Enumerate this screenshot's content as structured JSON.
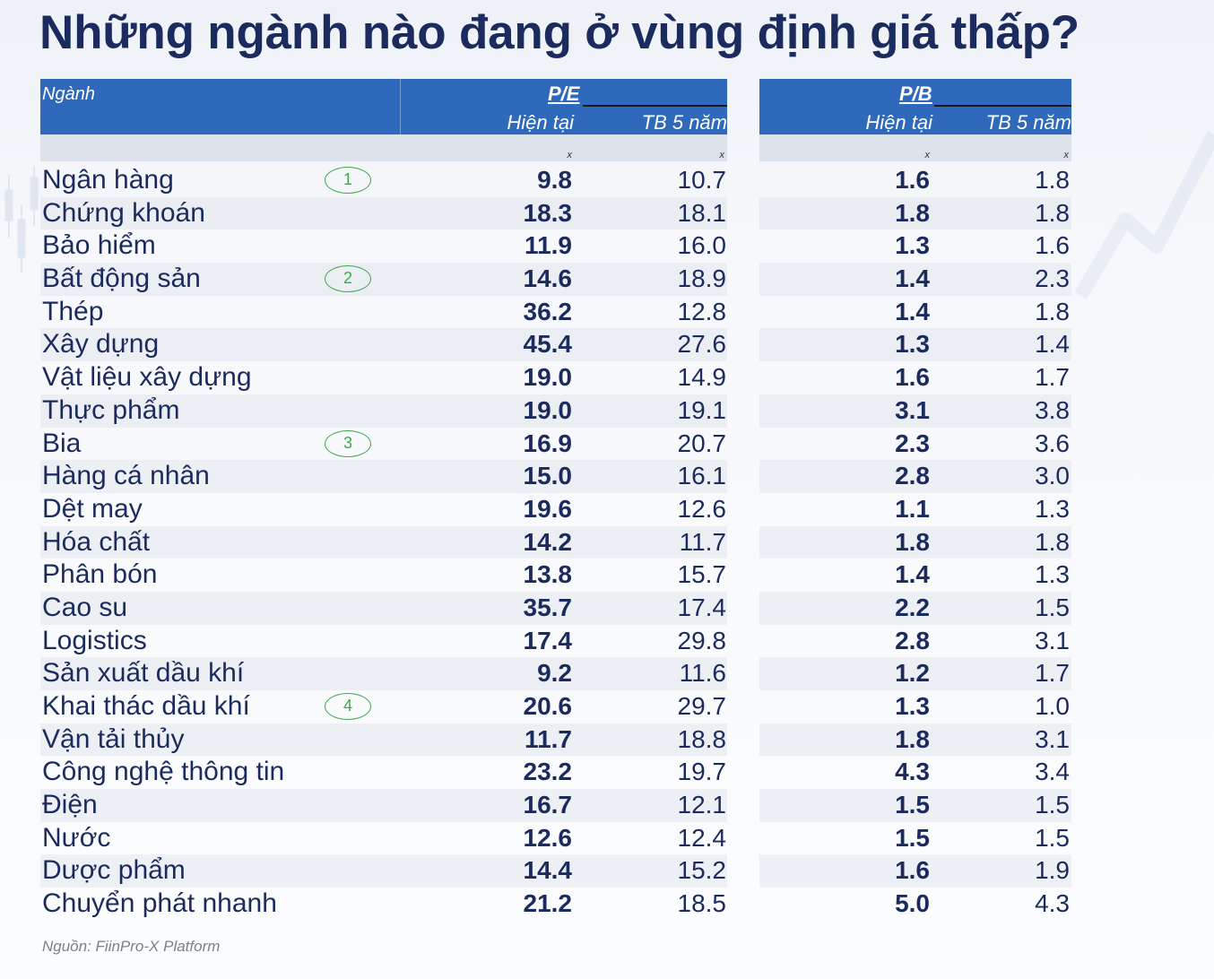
{
  "colors": {
    "title": "#1b2b5e",
    "header_bg": "#2f69bb",
    "subheader_bg": "#dde3ec",
    "marker": "#3fa84b",
    "source_text": "#7b808a"
  },
  "chart_data": {
    "type": "table",
    "title": "Những ngành nào đang ở vùng định giá thấp?",
    "source": "Nguồn: FiinPro-X Platform",
    "headers": {
      "industry": "Ngành",
      "pe": "P/E",
      "pb": "P/B",
      "current": "Hiện tại",
      "avg_5y": "TB 5 năm",
      "unit": "x"
    },
    "rows": [
      {
        "industry": "Ngân hàng",
        "marker": "1",
        "pe_current": "9.8",
        "pe_avg_5y": "10.7",
        "pb_current": "1.6",
        "pb_avg_5y": "1.8"
      },
      {
        "industry": "Chứng khoán",
        "pe_current": "18.3",
        "pe_avg_5y": "18.1",
        "pb_current": "1.8",
        "pb_avg_5y": "1.8"
      },
      {
        "industry": "Bảo hiểm",
        "pe_current": "11.9",
        "pe_avg_5y": "16.0",
        "pb_current": "1.3",
        "pb_avg_5y": "1.6"
      },
      {
        "industry": "Bất động sản",
        "marker": "2",
        "pe_current": "14.6",
        "pe_avg_5y": "18.9",
        "pb_current": "1.4",
        "pb_avg_5y": "2.3"
      },
      {
        "industry": "Thép",
        "pe_current": "36.2",
        "pe_avg_5y": "12.8",
        "pb_current": "1.4",
        "pb_avg_5y": "1.8"
      },
      {
        "industry": "Xây dựng",
        "pe_current": "45.4",
        "pe_avg_5y": "27.6",
        "pb_current": "1.3",
        "pb_avg_5y": "1.4"
      },
      {
        "industry": "Vật liệu xây dựng",
        "pe_current": "19.0",
        "pe_avg_5y": "14.9",
        "pb_current": "1.6",
        "pb_avg_5y": "1.7"
      },
      {
        "industry": "Thực phẩm",
        "pe_current": "19.0",
        "pe_avg_5y": "19.1",
        "pb_current": "3.1",
        "pb_avg_5y": "3.8"
      },
      {
        "industry": "Bia",
        "marker": "3",
        "pe_current": "16.9",
        "pe_avg_5y": "20.7",
        "pb_current": "2.3",
        "pb_avg_5y": "3.6"
      },
      {
        "industry": "Hàng cá nhân",
        "pe_current": "15.0",
        "pe_avg_5y": "16.1",
        "pb_current": "2.8",
        "pb_avg_5y": "3.0"
      },
      {
        "industry": "Dệt may",
        "pe_current": "19.6",
        "pe_avg_5y": "12.6",
        "pb_current": "1.1",
        "pb_avg_5y": "1.3"
      },
      {
        "industry": "Hóa chất",
        "pe_current": "14.2",
        "pe_avg_5y": "11.7",
        "pb_current": "1.8",
        "pb_avg_5y": "1.8"
      },
      {
        "industry": "Phân bón",
        "pe_current": "13.8",
        "pe_avg_5y": "15.7",
        "pb_current": "1.4",
        "pb_avg_5y": "1.3"
      },
      {
        "industry": "Cao su",
        "pe_current": "35.7",
        "pe_avg_5y": "17.4",
        "pb_current": "2.2",
        "pb_avg_5y": "1.5"
      },
      {
        "industry": "Logistics",
        "pe_current": "17.4",
        "pe_avg_5y": "29.8",
        "pb_current": "2.8",
        "pb_avg_5y": "3.1"
      },
      {
        "industry": "Sản xuất dầu khí",
        "pe_current": "9.2",
        "pe_avg_5y": "11.6",
        "pb_current": "1.2",
        "pb_avg_5y": "1.7"
      },
      {
        "industry": "Khai thác dầu khí",
        "marker": "4",
        "pe_current": "20.6",
        "pe_avg_5y": "29.7",
        "pb_current": "1.3",
        "pb_avg_5y": "1.0"
      },
      {
        "industry": "Vận tải thủy",
        "pe_current": "11.7",
        "pe_avg_5y": "18.8",
        "pb_current": "1.8",
        "pb_avg_5y": "3.1"
      },
      {
        "industry": "Công nghệ thông tin",
        "pe_current": "23.2",
        "pe_avg_5y": "19.7",
        "pb_current": "4.3",
        "pb_avg_5y": "3.4"
      },
      {
        "industry": "Điện",
        "pe_current": "16.7",
        "pe_avg_5y": "12.1",
        "pb_current": "1.5",
        "pb_avg_5y": "1.5"
      },
      {
        "industry": "Nước",
        "pe_current": "12.6",
        "pe_avg_5y": "12.4",
        "pb_current": "1.5",
        "pb_avg_5y": "1.5"
      },
      {
        "industry": "Dược phẩm",
        "pe_current": "14.4",
        "pe_avg_5y": "15.2",
        "pb_current": "1.6",
        "pb_avg_5y": "1.9"
      },
      {
        "industry": "Chuyển phát nhanh",
        "pe_current": "21.2",
        "pe_avg_5y": "18.5",
        "pb_current": "5.0",
        "pb_avg_5y": "4.3"
      }
    ]
  }
}
